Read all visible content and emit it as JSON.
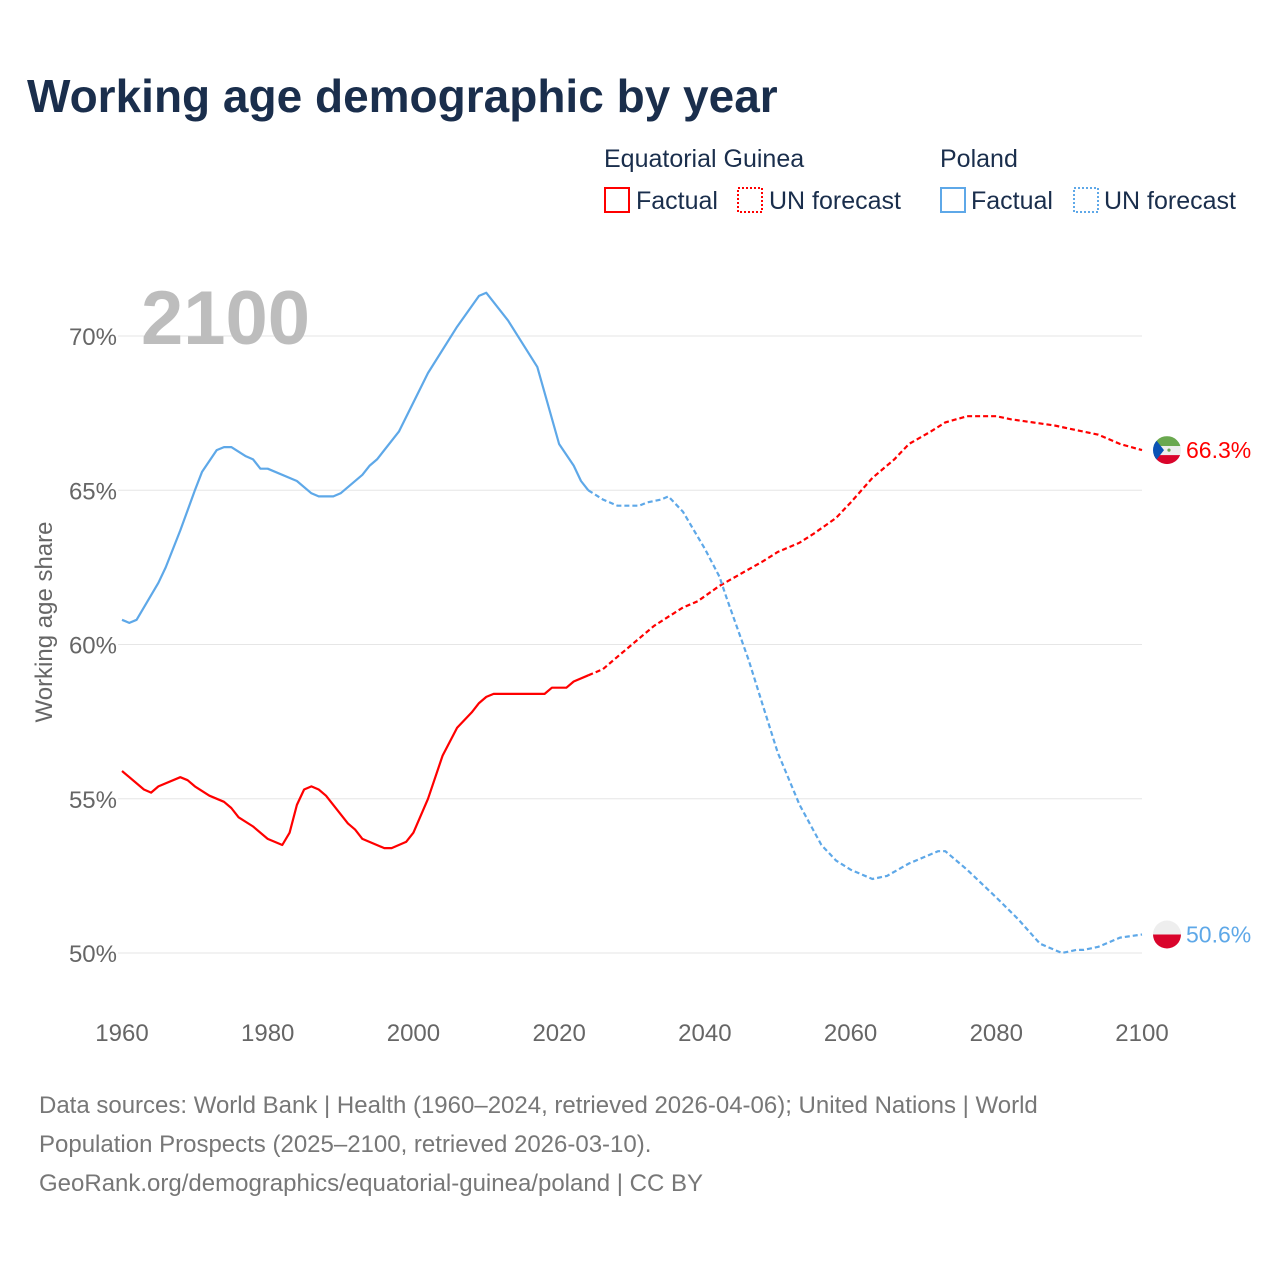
{
  "chart_data": {
    "type": "line",
    "title": "Working age demographic by year",
    "ylabel": "Working age share",
    "xlabel": "",
    "year_label": "2100",
    "xlim": [
      1960,
      2100
    ],
    "ylim": [
      50,
      70
    ],
    "x_ticks": [
      "1960",
      "1980",
      "2000",
      "2020",
      "2040",
      "2060",
      "2080",
      "2100"
    ],
    "y_ticks": [
      "50%",
      "55%",
      "60%",
      "65%",
      "70%"
    ],
    "y_tick_values": [
      50,
      55,
      60,
      65,
      70
    ],
    "x_tick_values": [
      1960,
      1980,
      2000,
      2020,
      2040,
      2060,
      2080,
      2100
    ],
    "grid": true,
    "factual_end_year": 2024,
    "legend": {
      "groups": [
        {
          "name": "Equatorial Guinea",
          "factual": "Factual",
          "forecast": "UN forecast"
        },
        {
          "name": "Poland",
          "factual": "Factual",
          "forecast": "UN forecast"
        }
      ]
    },
    "series": [
      {
        "name": "Equatorial Guinea",
        "color": "#ff0000",
        "end_label": "66.3%",
        "points": [
          [
            1960,
            55.9
          ],
          [
            1963,
            55.3
          ],
          [
            1964,
            55.2
          ],
          [
            1965,
            55.4
          ],
          [
            1968,
            55.7
          ],
          [
            1969,
            55.6
          ],
          [
            1970,
            55.4
          ],
          [
            1972,
            55.1
          ],
          [
            1974,
            54.9
          ],
          [
            1975,
            54.7
          ],
          [
            1976,
            54.4
          ],
          [
            1978,
            54.1
          ],
          [
            1980,
            53.7
          ],
          [
            1982,
            53.5
          ],
          [
            1983,
            53.9
          ],
          [
            1984,
            54.8
          ],
          [
            1985,
            55.3
          ],
          [
            1986,
            55.4
          ],
          [
            1987,
            55.3
          ],
          [
            1988,
            55.1
          ],
          [
            1991,
            54.2
          ],
          [
            1992,
            54.0
          ],
          [
            1993,
            53.7
          ],
          [
            1996,
            53.4
          ],
          [
            1997,
            53.4
          ],
          [
            1999,
            53.6
          ],
          [
            2000,
            53.9
          ],
          [
            2002,
            55.0
          ],
          [
            2004,
            56.4
          ],
          [
            2006,
            57.3
          ],
          [
            2008,
            57.8
          ],
          [
            2009,
            58.1
          ],
          [
            2010,
            58.3
          ],
          [
            2011,
            58.4
          ],
          [
            2018,
            58.4
          ],
          [
            2019,
            58.6
          ],
          [
            2021,
            58.6
          ],
          [
            2022,
            58.8
          ],
          [
            2024,
            59.0
          ],
          [
            2026,
            59.2
          ],
          [
            2028,
            59.6
          ],
          [
            2030,
            60.0
          ],
          [
            2033,
            60.6
          ],
          [
            2035,
            60.9
          ],
          [
            2037,
            61.2
          ],
          [
            2039,
            61.4
          ],
          [
            2042,
            61.9
          ],
          [
            2045,
            62.3
          ],
          [
            2048,
            62.7
          ],
          [
            2050,
            63.0
          ],
          [
            2053,
            63.3
          ],
          [
            2055,
            63.6
          ],
          [
            2058,
            64.1
          ],
          [
            2060,
            64.6
          ],
          [
            2063,
            65.4
          ],
          [
            2066,
            66.0
          ],
          [
            2068,
            66.5
          ],
          [
            2071,
            66.9
          ],
          [
            2073,
            67.2
          ],
          [
            2076,
            67.4
          ],
          [
            2080,
            67.4
          ],
          [
            2082,
            67.3
          ],
          [
            2085,
            67.2
          ],
          [
            2088,
            67.1
          ],
          [
            2090,
            67.0
          ],
          [
            2094,
            66.8
          ],
          [
            2097,
            66.5
          ],
          [
            2100,
            66.3
          ]
        ]
      },
      {
        "name": "Poland",
        "color": "#5ea8e8",
        "end_label": "50.6%",
        "points": [
          [
            1960,
            60.8
          ],
          [
            1961,
            60.7
          ],
          [
            1962,
            60.8
          ],
          [
            1965,
            62.0
          ],
          [
            1966,
            62.5
          ],
          [
            1968,
            63.7
          ],
          [
            1970,
            65.0
          ],
          [
            1971,
            65.6
          ],
          [
            1973,
            66.3
          ],
          [
            1974,
            66.4
          ],
          [
            1975,
            66.4
          ],
          [
            1977,
            66.1
          ],
          [
            1978,
            66.0
          ],
          [
            1979,
            65.7
          ],
          [
            1980,
            65.7
          ],
          [
            1984,
            65.3
          ],
          [
            1986,
            64.9
          ],
          [
            1987,
            64.8
          ],
          [
            1989,
            64.8
          ],
          [
            1990,
            64.9
          ],
          [
            1993,
            65.5
          ],
          [
            1994,
            65.8
          ],
          [
            1995,
            66.0
          ],
          [
            1998,
            66.9
          ],
          [
            2002,
            68.8
          ],
          [
            2006,
            70.3
          ],
          [
            2009,
            71.3
          ],
          [
            2010,
            71.4
          ],
          [
            2013,
            70.5
          ],
          [
            2017,
            69.0
          ],
          [
            2020,
            66.5
          ],
          [
            2022,
            65.8
          ],
          [
            2023,
            65.3
          ],
          [
            2024,
            65.0
          ],
          [
            2026,
            64.7
          ],
          [
            2028,
            64.5
          ],
          [
            2031,
            64.5
          ],
          [
            2032,
            64.6
          ],
          [
            2034,
            64.7
          ],
          [
            2035,
            64.8
          ],
          [
            2037,
            64.3
          ],
          [
            2040,
            63.1
          ],
          [
            2042,
            62.2
          ],
          [
            2043,
            61.5
          ],
          [
            2046,
            59.5
          ],
          [
            2048,
            58.0
          ],
          [
            2050,
            56.5
          ],
          [
            2053,
            54.8
          ],
          [
            2056,
            53.5
          ],
          [
            2058,
            53.0
          ],
          [
            2060,
            52.7
          ],
          [
            2063,
            52.4
          ],
          [
            2065,
            52.5
          ],
          [
            2068,
            52.9
          ],
          [
            2070,
            53.1
          ],
          [
            2072,
            53.3
          ],
          [
            2073,
            53.3
          ],
          [
            2076,
            52.7
          ],
          [
            2080,
            51.8
          ],
          [
            2083,
            51.1
          ],
          [
            2086,
            50.3
          ],
          [
            2089,
            50.0
          ],
          [
            2091,
            50.1
          ],
          [
            2092,
            50.1
          ],
          [
            2094,
            50.2
          ],
          [
            2097,
            50.5
          ],
          [
            2100,
            50.6
          ]
        ]
      }
    ]
  },
  "footer": {
    "line1": "Data sources: World Bank | Health (1960–2024, retrieved 2026-04-06); United Nations | World",
    "line2": "Population Prospects (2025–2100, retrieved 2026-03-10).",
    "line3": "GeoRank.org/demographics/equatorial-guinea/poland | CC BY"
  }
}
